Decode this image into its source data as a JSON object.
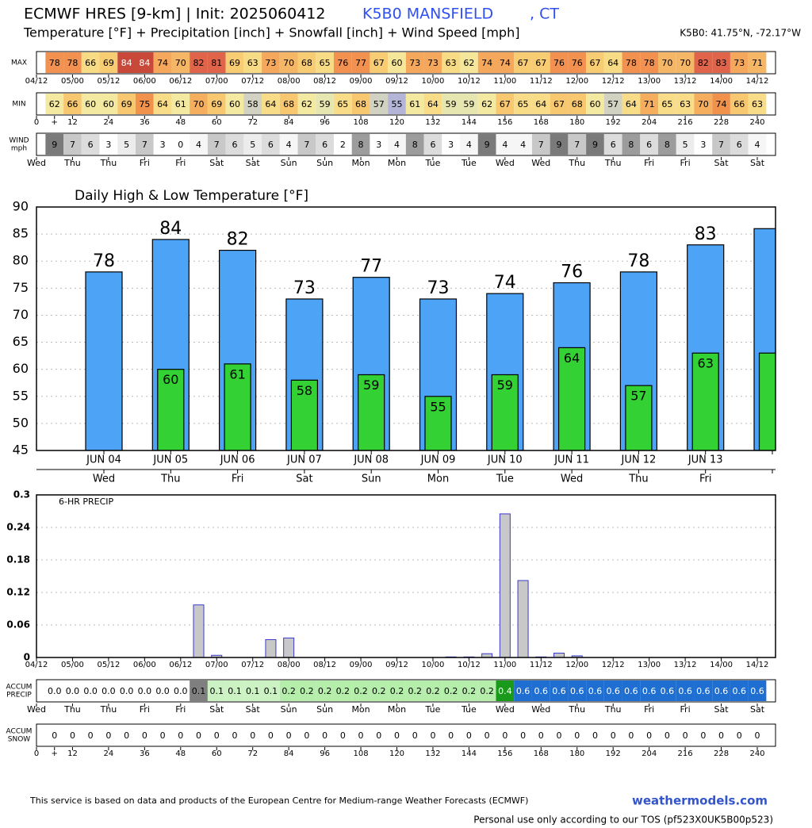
{
  "header": {
    "title": "ECMWF HRES [9-km] | Init: 2025060412",
    "station": "K5B0 MANSFIELD",
    "state": ", CT",
    "subtitle": "Temperature [°F] + Precipitation [inch] + Snowfall [inch] + Wind Speed [mph]",
    "location": "K5B0: 41.75°N, -72.17°W"
  },
  "strips": {
    "xlim": [
      0,
      240
    ],
    "x": [
      6,
      12,
      18,
      24,
      30,
      36,
      42,
      48,
      54,
      60,
      66,
      72,
      78,
      84,
      90,
      96,
      102,
      108,
      114,
      120,
      126,
      132,
      138,
      144,
      150,
      156,
      162,
      168,
      174,
      180,
      186,
      192,
      198,
      204,
      210,
      216,
      222,
      228,
      234,
      240
    ],
    "date_ticks": [
      {
        "value": 0,
        "label": "04/12"
      },
      {
        "value": 12,
        "label": "05/00"
      },
      {
        "value": 24,
        "label": "05/12"
      },
      {
        "value": 36,
        "label": "06/00"
      },
      {
        "value": 48,
        "label": "06/12"
      },
      {
        "value": 60,
        "label": "07/00"
      },
      {
        "value": 72,
        "label": "07/12"
      },
      {
        "value": 84,
        "label": "08/00"
      },
      {
        "value": 96,
        "label": "08/12"
      },
      {
        "value": 108,
        "label": "09/00"
      },
      {
        "value": 120,
        "label": "09/12"
      },
      {
        "value": 132,
        "label": "10/00"
      },
      {
        "value": 144,
        "label": "10/12"
      },
      {
        "value": 156,
        "label": "11/00"
      },
      {
        "value": 168,
        "label": "11/12"
      },
      {
        "value": 180,
        "label": "12/00"
      },
      {
        "value": 192,
        "label": "12/12"
      },
      {
        "value": 204,
        "label": "13/00"
      },
      {
        "value": 216,
        "label": "13/12"
      },
      {
        "value": 228,
        "label": "14/00"
      },
      {
        "value": 240,
        "label": "14/12"
      }
    ],
    "hour_ticks": [
      0,
      {
        "value": 6,
        "label": "+"
      },
      12,
      24,
      36,
      48,
      60,
      72,
      84,
      96,
      108,
      120,
      132,
      144,
      156,
      168,
      180,
      192,
      204,
      216,
      228,
      240
    ],
    "day_ticks": [
      {
        "value": 0,
        "label": "Wed"
      },
      {
        "value": 12,
        "label": "Thu"
      },
      {
        "value": 24,
        "label": "Thu"
      },
      {
        "value": 36,
        "label": "Fri"
      },
      {
        "value": 48,
        "label": "Fri"
      },
      {
        "value": 60,
        "label": "Sat"
      },
      {
        "value": 72,
        "label": "Sat"
      },
      {
        "value": 84,
        "label": "Sun"
      },
      {
        "value": 96,
        "label": "Sun"
      },
      {
        "value": 108,
        "label": "Mon"
      },
      {
        "value": 120,
        "label": "Mon"
      },
      {
        "value": 132,
        "label": "Tue"
      },
      {
        "value": 144,
        "label": "Tue"
      },
      {
        "value": 156,
        "label": "Wed"
      },
      {
        "value": 168,
        "label": "Wed"
      },
      {
        "value": 180,
        "label": "Thu"
      },
      {
        "value": 192,
        "label": "Thu"
      },
      {
        "value": 204,
        "label": "Fri"
      },
      {
        "value": 216,
        "label": "Fri"
      },
      {
        "value": 228,
        "label": "Sat"
      },
      {
        "value": 240,
        "label": "Sat"
      }
    ],
    "max": {
      "label": "MAX",
      "values": [
        78,
        78,
        66,
        69,
        84,
        84,
        74,
        70,
        82,
        81,
        69,
        63,
        73,
        70,
        68,
        65,
        76,
        77,
        67,
        60,
        73,
        73,
        63,
        62,
        74,
        74,
        67,
        67,
        76,
        76,
        67,
        64,
        78,
        78,
        70,
        70,
        82,
        83,
        73,
        71
      ],
      "colors": [
        "#f39150",
        "#f39150",
        "#f8db85",
        "#f8cc72",
        "#c8493a",
        "#c8493a",
        "#f5a85b",
        "#f5b766",
        "#e0644a",
        "#e0644a",
        "#f8cc72",
        "#f8db85",
        "#f5a85b",
        "#f5b766",
        "#f8cc72",
        "#f8db85",
        "#f39150",
        "#f39150",
        "#f8cc72",
        "#f5e69a",
        "#f5a85b",
        "#f5a85b",
        "#f8db85",
        "#f5e69a",
        "#f5a85b",
        "#f5a85b",
        "#f8cc72",
        "#f8cc72",
        "#f39150",
        "#f39150",
        "#f8cc72",
        "#f8db85",
        "#f39150",
        "#f39150",
        "#f5b766",
        "#f5b766",
        "#e0644a",
        "#e0644a",
        "#f5a85b",
        "#f5b766"
      ]
    },
    "min": {
      "label": "MIN",
      "values": [
        62,
        66,
        60,
        60,
        69,
        75,
        64,
        61,
        70,
        69,
        60,
        58,
        64,
        68,
        62,
        59,
        65,
        68,
        57,
        55,
        61,
        64,
        59,
        59,
        62,
        67,
        65,
        64,
        67,
        68,
        60,
        57,
        64,
        71,
        65,
        63,
        70,
        74,
        66,
        63
      ],
      "colors": [
        "#f4e9a0",
        "#f8c870",
        "#f4e9a0",
        "#f4e9a0",
        "#f8c870",
        "#f0914c",
        "#f8dc88",
        "#f4e9a0",
        "#f5ad5e",
        "#f8c870",
        "#f4e9a0",
        "#d2d2c2",
        "#f8dc88",
        "#f8c870",
        "#f4e9a0",
        "#e6e6b0",
        "#f8dc88",
        "#f8c870",
        "#d2d2c2",
        "#b4b4d8",
        "#f4e9a0",
        "#f8dc88",
        "#e6e6b0",
        "#e6e6b0",
        "#f4e9a0",
        "#f8c870",
        "#f8dc88",
        "#f8dc88",
        "#f8c870",
        "#f8c870",
        "#f4e9a0",
        "#d2d2c2",
        "#f8dc88",
        "#f5ad5e",
        "#f8dc88",
        "#f8dc88",
        "#f5ad5e",
        "#f0914c",
        "#f8c870",
        "#f8dc88"
      ]
    },
    "wind": {
      "label": [
        "WIND",
        "mph"
      ],
      "values": [
        9,
        7,
        6,
        3,
        5,
        7,
        3,
        0,
        4,
        7,
        6,
        5,
        6,
        4,
        7,
        6,
        2,
        8,
        3,
        4,
        8,
        6,
        3,
        4,
        9,
        4,
        4,
        7,
        9,
        7,
        9,
        6,
        8,
        6,
        8,
        5,
        3,
        7,
        6,
        4
      ],
      "colors": [
        "#7a7a7a",
        "#c8c8c8",
        "#dcdcdc",
        "#ffffff",
        "#ececec",
        "#c8c8c8",
        "#ffffff",
        "#ffffff",
        "#f6f6f6",
        "#c8c8c8",
        "#dcdcdc",
        "#ececec",
        "#dcdcdc",
        "#f6f6f6",
        "#c8c8c8",
        "#dcdcdc",
        "#ffffff",
        "#9c9c9c",
        "#ffffff",
        "#f6f6f6",
        "#9c9c9c",
        "#dcdcdc",
        "#ffffff",
        "#f6f6f6",
        "#7a7a7a",
        "#f6f6f6",
        "#f6f6f6",
        "#c8c8c8",
        "#7a7a7a",
        "#c8c8c8",
        "#7a7a7a",
        "#dcdcdc",
        "#9c9c9c",
        "#dcdcdc",
        "#9c9c9c",
        "#ececec",
        "#ffffff",
        "#c8c8c8",
        "#dcdcdc",
        "#f6f6f6"
      ]
    },
    "accum_precip": {
      "label": [
        "ACCUM",
        "PRECIP"
      ],
      "cells": [
        "0.0",
        "0.0",
        "0.0",
        "0.0",
        "0.0",
        "0.0",
        "0.0",
        "0.0",
        "0.1",
        "0.1",
        "0.1",
        "0.1",
        "0.1",
        "0.2",
        "0.2",
        "0.2",
        "0.2",
        "0.2",
        "0.2",
        "0.2",
        "0.2",
        "0.2",
        "0.2",
        "0.2",
        "0.2",
        "0.4",
        "0.6",
        "0.6",
        "0.6",
        "0.6",
        "0.6",
        "0.6",
        "0.6",
        "0.6",
        "0.6",
        "0.6",
        "0.6",
        "0.6",
        "0.6",
        "0.6"
      ],
      "colors": [
        "#ffffff",
        "#ffffff",
        "#ffffff",
        "#ffffff",
        "#ffffff",
        "#ffffff",
        "#ffffff",
        "#ffffff",
        "#7f7f7f",
        "#ccf2c4",
        "#ccf2c4",
        "#ccf2c4",
        "#ccf2c4",
        "#b5edab",
        "#b5edab",
        "#b5edab",
        "#b5edab",
        "#b5edab",
        "#b5edab",
        "#b5edab",
        "#b5edab",
        "#b5edab",
        "#b5edab",
        "#b5edab",
        "#b5edab",
        "#1a9a1a",
        "#1e6fd1",
        "#1e6fd1",
        "#1e6fd1",
        "#1e6fd1",
        "#1e6fd1",
        "#1e6fd1",
        "#1e6fd1",
        "#1e6fd1",
        "#1e6fd1",
        "#1e6fd1",
        "#1e6fd1",
        "#1e6fd1",
        "#1e6fd1",
        "#1e6fd1"
      ]
    },
    "accum_snow": {
      "label": [
        "ACCUM",
        "SNOW"
      ],
      "values": [
        0,
        0,
        0,
        0,
        0,
        0,
        0,
        0,
        0,
        0,
        0,
        0,
        0,
        0,
        0,
        0,
        0,
        0,
        0,
        0,
        0,
        0,
        0,
        0,
        0,
        0,
        0,
        0,
        0,
        0,
        0,
        0,
        0,
        0,
        0,
        0,
        0,
        0,
        0,
        0
      ]
    }
  },
  "chart_data": [
    {
      "type": "bar",
      "title": "Daily High & Low Temperature [°F]",
      "categories": [
        "JUN 04",
        "JUN 05",
        "JUN 06",
        "JUN 07",
        "JUN 08",
        "JUN 09",
        "JUN 10",
        "JUN 11",
        "JUN 12",
        "JUN 13",
        null
      ],
      "days": [
        "Wed",
        "Thu",
        "Fri",
        "Sat",
        "Sun",
        "Mon",
        "Tue",
        "Wed",
        "Thu",
        "Fri",
        null
      ],
      "series": [
        {
          "color": "#4da3f5",
          "values": [
            78,
            84,
            82,
            73,
            77,
            73,
            74,
            76,
            78,
            83,
            86
          ]
        },
        {
          "color": "#33d133",
          "values": [
            null,
            60,
            61,
            58,
            59,
            55,
            59,
            64,
            57,
            63,
            63
          ]
        }
      ],
      "ylim": [
        45,
        90
      ],
      "yticks": [
        45,
        50,
        55,
        60,
        65,
        70,
        75,
        80,
        85,
        90
      ],
      "grid": true
    },
    {
      "type": "precip",
      "title": "6-HR PRECIP",
      "x": [
        6,
        12,
        18,
        24,
        30,
        36,
        42,
        48,
        54,
        60,
        66,
        72,
        78,
        84,
        90,
        96,
        102,
        108,
        114,
        120,
        126,
        132,
        138,
        144,
        150,
        156,
        162,
        168,
        174,
        180,
        186,
        192,
        198,
        204,
        210,
        216,
        222,
        228,
        234,
        240
      ],
      "values": [
        0,
        0,
        0,
        0,
        0,
        0,
        0,
        0,
        0.097,
        0.004,
        0,
        0,
        0.033,
        0.036,
        0,
        0,
        0,
        0,
        0,
        0,
        0,
        0,
        0.001,
        0.001,
        0.007,
        0.265,
        0.142,
        0.001,
        0.008,
        0.003,
        0,
        0,
        0,
        0,
        0,
        0,
        0,
        0,
        0,
        0
      ],
      "color": "#c8c8c8",
      "edge_color": "#3a3acc",
      "xlim": [
        0,
        240
      ],
      "xticks": [
        {
          "value": 0,
          "label": "04/12"
        },
        {
          "value": 12,
          "label": "05/00"
        },
        {
          "value": 24,
          "label": "05/12"
        },
        {
          "value": 36,
          "label": "06/00"
        },
        {
          "value": 48,
          "label": "06/12"
        },
        {
          "value": 60,
          "label": "07/00"
        },
        {
          "value": 72,
          "label": "07/12"
        },
        {
          "value": 84,
          "label": "08/00"
        },
        {
          "value": 96,
          "label": "08/12"
        },
        {
          "value": 108,
          "label": "09/00"
        },
        {
          "value": 120,
          "label": "09/12"
        },
        {
          "value": 132,
          "label": "10/00"
        },
        {
          "value": 144,
          "label": "10/12"
        },
        {
          "value": 156,
          "label": "11/00"
        },
        {
          "value": 168,
          "label": "11/12"
        },
        {
          "value": 180,
          "label": "12/00"
        },
        {
          "value": 192,
          "label": "12/12"
        },
        {
          "value": 204,
          "label": "13/00"
        },
        {
          "value": 216,
          "label": "13/12"
        },
        {
          "value": 228,
          "label": "14/00"
        },
        {
          "value": 240,
          "label": "14/12"
        }
      ],
      "ylim": [
        0,
        0.3
      ],
      "yticks": [
        0,
        0.06,
        0.12,
        0.18,
        0.24,
        0.3
      ],
      "grid": true
    }
  ],
  "footer": {
    "source": "This service is based on data and products of the European Centre for Medium-range Weather Forecasts (ECMWF)",
    "site": "weathermodels.com",
    "tos": "Personal use only according to our TOS (pf523X0UK5B00p523)"
  }
}
